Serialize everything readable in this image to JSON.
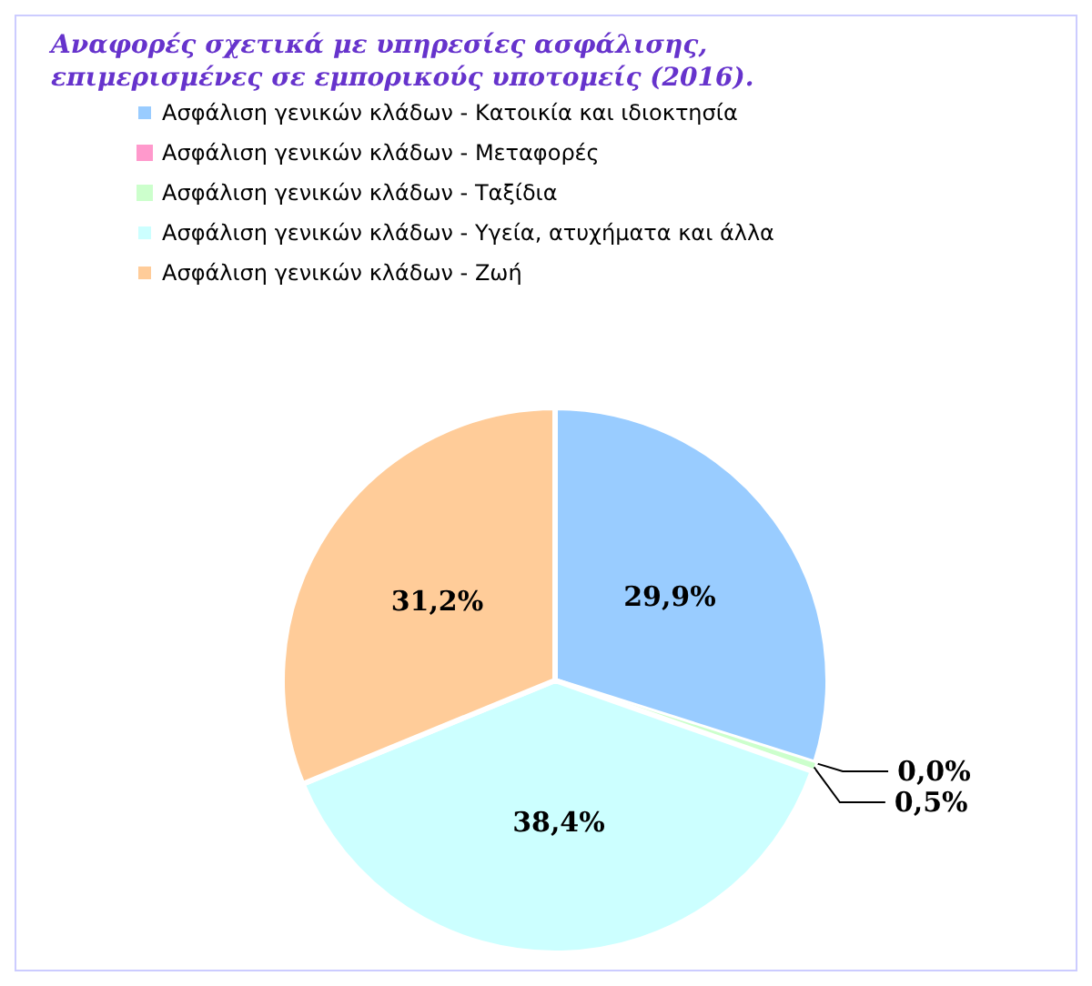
{
  "chart_data": {
    "type": "pie",
    "title": "Αναφορές σχετικά με υπηρεσίες ασφάλισης, επιμερισμένες σε εμπορικούς υποτομείς (2016).",
    "categories": [
      "Ασφάλιση γενικών κλάδων - Κατοικία και ιδιοκτησία",
      "Ασφάλιση γενικών κλάδων - Μεταφορές",
      "Ασφάλιση γενικών κλάδων - Ταξίδια",
      "Ασφάλιση γενικών κλάδων - Υγεία, ατυχήματα και άλλα",
      "Ασφάλιση γενικών κλάδων - Ζωή"
    ],
    "values": [
      29.9,
      0.0,
      0.5,
      38.4,
      31.2
    ],
    "value_labels": [
      "29,9%",
      "0,0%",
      "0,5%",
      "38,4%",
      "31,2%"
    ],
    "colors": [
      "#99ccff",
      "#ff99cc",
      "#ccffcc",
      "#ccffff",
      "#ffcc99"
    ],
    "legend": "top left"
  }
}
